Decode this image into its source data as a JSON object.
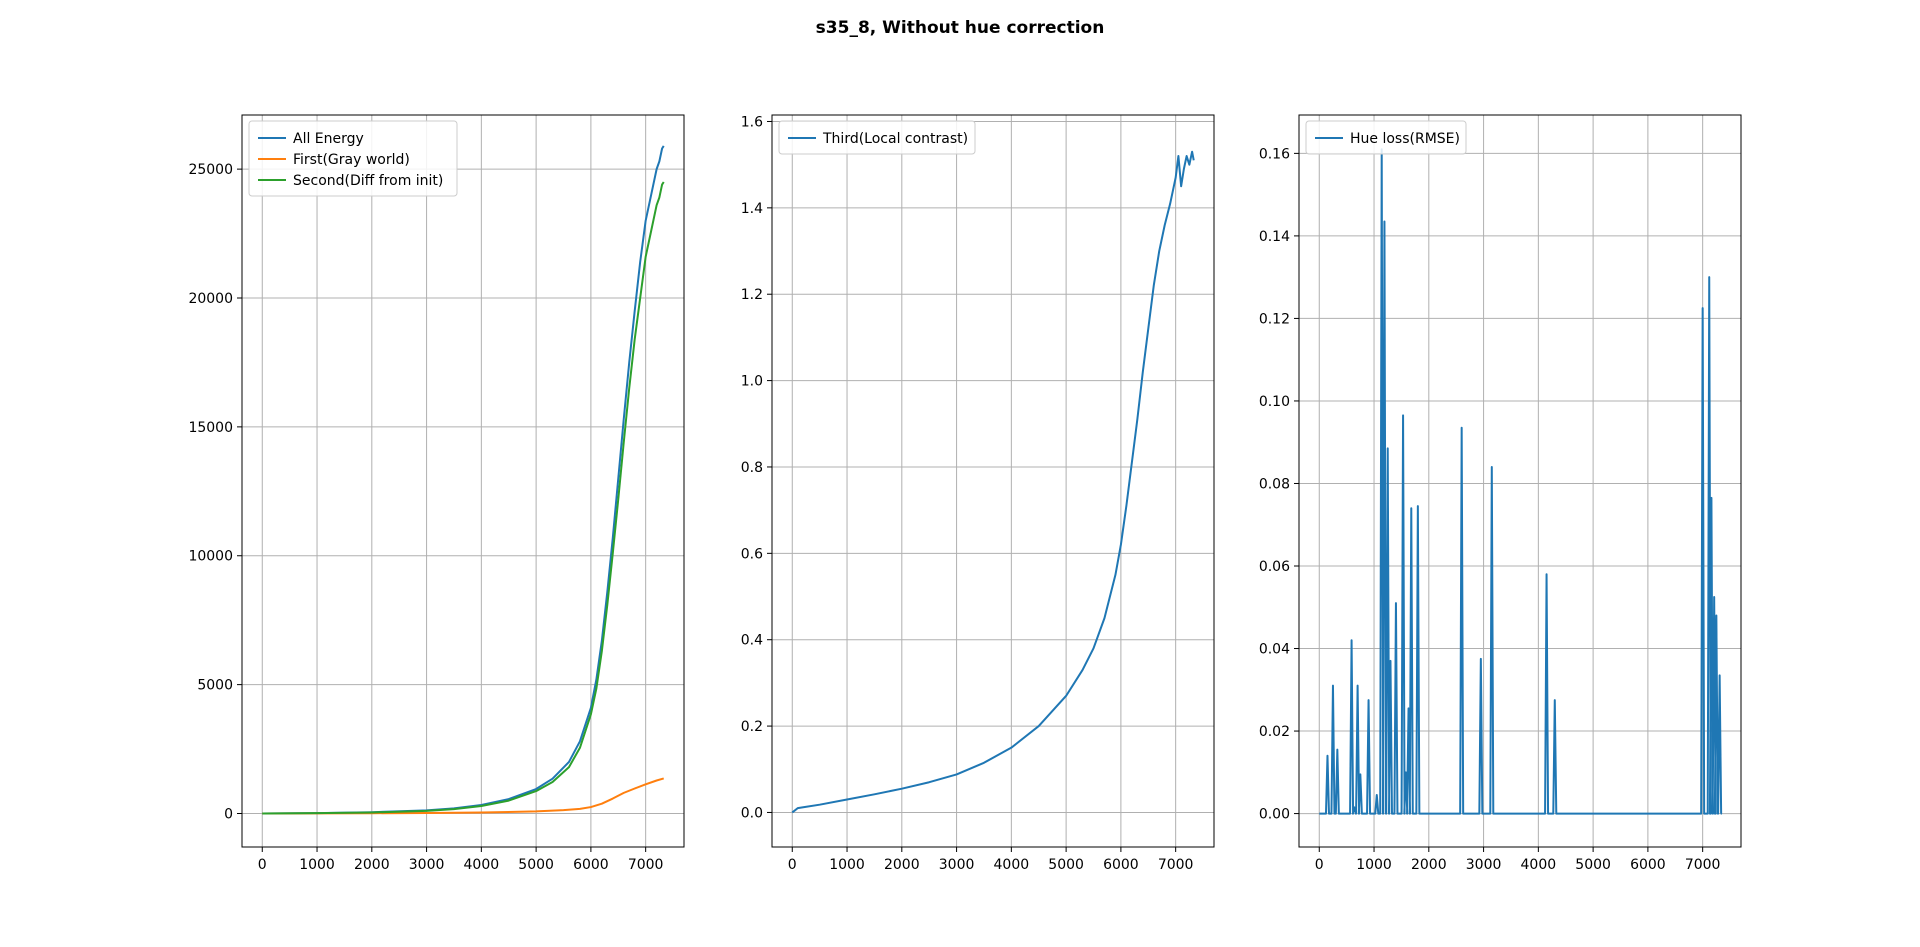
{
  "figure": {
    "suptitle": "s35_8, Without hue correction"
  },
  "chart_data": [
    {
      "type": "line",
      "title": "",
      "xlabel": "",
      "ylabel": "",
      "xlim": [
        -370,
        7700
      ],
      "ylim": [
        -1300,
        27100
      ],
      "xticks": [
        0,
        1000,
        2000,
        3000,
        4000,
        5000,
        6000,
        7000
      ],
      "yticks": [
        0,
        5000,
        10000,
        15000,
        20000,
        25000
      ],
      "grid": true,
      "legend": "top-left",
      "series": [
        {
          "name": "All Energy",
          "color": "#1f77b4",
          "x": [
            0,
            1000,
            2000,
            3000,
            3500,
            4000,
            4500,
            5000,
            5300,
            5600,
            5800,
            6000,
            6100,
            6200,
            6300,
            6400,
            6500,
            6600,
            6700,
            6800,
            6900,
            7000,
            7100,
            7200,
            7250,
            7300,
            7330
          ],
          "y": [
            0,
            15,
            50,
            120,
            200,
            330,
            560,
            950,
            1350,
            2000,
            2800,
            4100,
            5200,
            6700,
            8600,
            10700,
            13000,
            15300,
            17500,
            19500,
            21400,
            23000,
            24000,
            25000,
            25300,
            25800,
            25900
          ]
        },
        {
          "name": "First(Gray world)",
          "color": "#ff7f0e",
          "x": [
            0,
            1000,
            2000,
            3000,
            4000,
            5000,
            5500,
            5800,
            6000,
            6200,
            6400,
            6600,
            6800,
            7000,
            7200,
            7330
          ],
          "y": [
            0,
            3,
            10,
            20,
            40,
            80,
            130,
            180,
            250,
            380,
            580,
            800,
            970,
            1130,
            1280,
            1360
          ]
        },
        {
          "name": "Second(Diff from init)",
          "color": "#2ca02c",
          "x": [
            0,
            1000,
            2000,
            3000,
            3500,
            4000,
            4500,
            5000,
            5300,
            5600,
            5800,
            6000,
            6100,
            6200,
            6300,
            6400,
            6500,
            6600,
            6700,
            6800,
            6900,
            7000,
            7100,
            7200,
            7250,
            7300,
            7330
          ],
          "y": [
            0,
            12,
            40,
            100,
            170,
            290,
            500,
            870,
            1220,
            1800,
            2550,
            3850,
            4850,
            6300,
            8100,
            10100,
            12200,
            14400,
            16500,
            18400,
            20000,
            21600,
            22600,
            23600,
            23900,
            24400,
            24500
          ]
        }
      ]
    },
    {
      "type": "line",
      "title": "",
      "xlabel": "",
      "ylabel": "",
      "xlim": [
        -370,
        7700
      ],
      "ylim": [
        -0.08,
        1.615
      ],
      "xticks": [
        0,
        1000,
        2000,
        3000,
        4000,
        5000,
        6000,
        7000
      ],
      "yticks": [
        0.0,
        0.2,
        0.4,
        0.6,
        0.8,
        1.0,
        1.2,
        1.4,
        1.6
      ],
      "ytick_labels": [
        "0.0",
        "0.2",
        "0.4",
        "0.6",
        "0.8",
        "1.0",
        "1.2",
        "1.4",
        "1.6"
      ],
      "grid": true,
      "legend": "top-left",
      "series": [
        {
          "name": "Third(Local contrast)",
          "color": "#1f77b4",
          "x": [
            0,
            50,
            100,
            200,
            500,
            1000,
            1500,
            2000,
            2500,
            3000,
            3500,
            4000,
            4500,
            5000,
            5300,
            5500,
            5700,
            5900,
            6000,
            6100,
            6200,
            6300,
            6400,
            6500,
            6600,
            6700,
            6800,
            6900,
            6950,
            7000,
            7050,
            7100,
            7150,
            7200,
            7250,
            7300,
            7330
          ],
          "y": [
            0,
            0.005,
            0.01,
            0.012,
            0.018,
            0.03,
            0.042,
            0.055,
            0.07,
            0.088,
            0.115,
            0.15,
            0.2,
            0.27,
            0.33,
            0.38,
            0.45,
            0.55,
            0.62,
            0.71,
            0.81,
            0.91,
            1.02,
            1.12,
            1.22,
            1.3,
            1.36,
            1.41,
            1.44,
            1.47,
            1.52,
            1.45,
            1.49,
            1.52,
            1.5,
            1.53,
            1.51
          ]
        }
      ]
    },
    {
      "type": "line",
      "title": "",
      "xlabel": "",
      "ylabel": "",
      "xlim": [
        -370,
        7700
      ],
      "ylim": [
        -0.0081,
        0.1693
      ],
      "xticks": [
        0,
        1000,
        2000,
        3000,
        4000,
        5000,
        6000,
        7000
      ],
      "yticks": [
        0.0,
        0.02,
        0.04,
        0.06,
        0.08,
        0.1,
        0.12,
        0.14,
        0.16
      ],
      "ytick_labels": [
        "0.00",
        "0.02",
        "0.04",
        "0.06",
        "0.08",
        "0.10",
        "0.12",
        "0.14",
        "0.16"
      ],
      "grid": true,
      "legend": "top-left",
      "series": [
        {
          "name": "Hue loss(RMSE)",
          "color": "#1f77b4",
          "x": [
            150,
            250,
            330,
            590,
            640,
            700,
            750,
            900,
            1050,
            1140,
            1190,
            1250,
            1300,
            1400,
            1530,
            1580,
            1630,
            1680,
            1800,
            2600,
            2950,
            3150,
            4150,
            4300,
            7000,
            7120,
            7160,
            7210,
            7250,
            7310
          ],
          "y": [
            0.014,
            0.031,
            0.0155,
            0.042,
            0.0015,
            0.031,
            0.0095,
            0.0275,
            0.0045,
            0.161,
            0.1435,
            0.0885,
            0.037,
            0.051,
            0.0965,
            0.01,
            0.0255,
            0.074,
            0.0745,
            0.0935,
            0.0375,
            0.084,
            0.058,
            0.0275,
            0.1225,
            0.13,
            0.0765,
            0.0525,
            0.048,
            0.0335
          ]
        }
      ]
    }
  ]
}
